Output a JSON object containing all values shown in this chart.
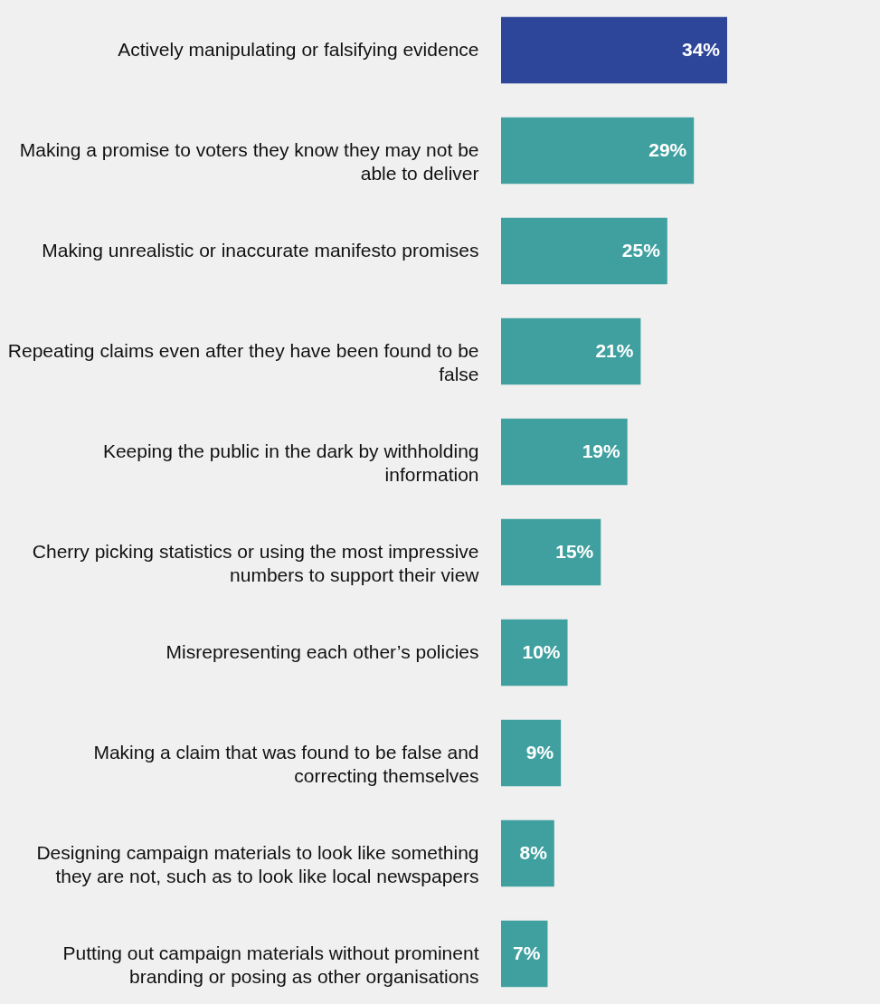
{
  "chart_data": {
    "type": "bar",
    "orientation": "horizontal",
    "categories": [
      "Actively manipulating or falsifying evidence",
      "Making a promise to voters they know they may not be able to deliver",
      "Making unrealistic or inaccurate manifesto promises",
      "Repeating claims even after they have been found to be false",
      "Keeping the public in the dark by withholding information",
      "Cherry picking statistics or using the most impressive numbers to support their view",
      "Misrepresenting each other’s policies",
      "Making a claim that was found to be false and correcting themselves",
      "Designing campaign materials to look like something they are not, such as to look like local newspapers",
      "Putting out campaign materials without prominent branding or posing as other organisations"
    ],
    "values": [
      34,
      29,
      25,
      21,
      19,
      15,
      10,
      9,
      8,
      7
    ],
    "colors": [
      "#2e4699",
      "#40a0a0",
      "#40a0a0",
      "#40a0a0",
      "#40a0a0",
      "#40a0a0",
      "#40a0a0",
      "#40a0a0",
      "#40a0a0",
      "#40a0a0"
    ],
    "value_labels": [
      "34%",
      "29%",
      "25%",
      "21%",
      "19%",
      "15%",
      "10%",
      "9%",
      "8%",
      "7%"
    ]
  }
}
